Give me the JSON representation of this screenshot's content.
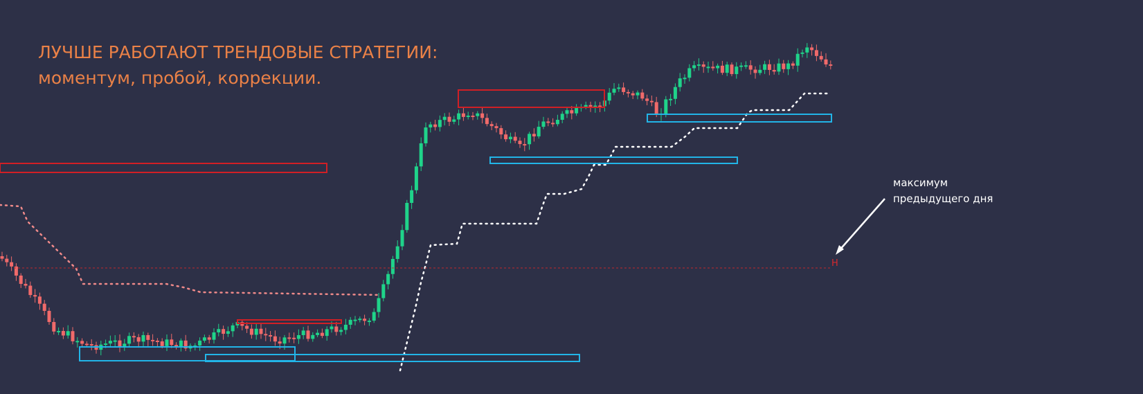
{
  "title": {
    "line1": "ЛУЧШЕ РАБОТАЮТ ТРЕНДОВЫЕ СТРАТЕГИИ:",
    "line2": "моментум, пробой, коррекции."
  },
  "annotation": {
    "line1": "максимум",
    "line2": "предыдущего дня"
  },
  "level_marker": "H"
}
